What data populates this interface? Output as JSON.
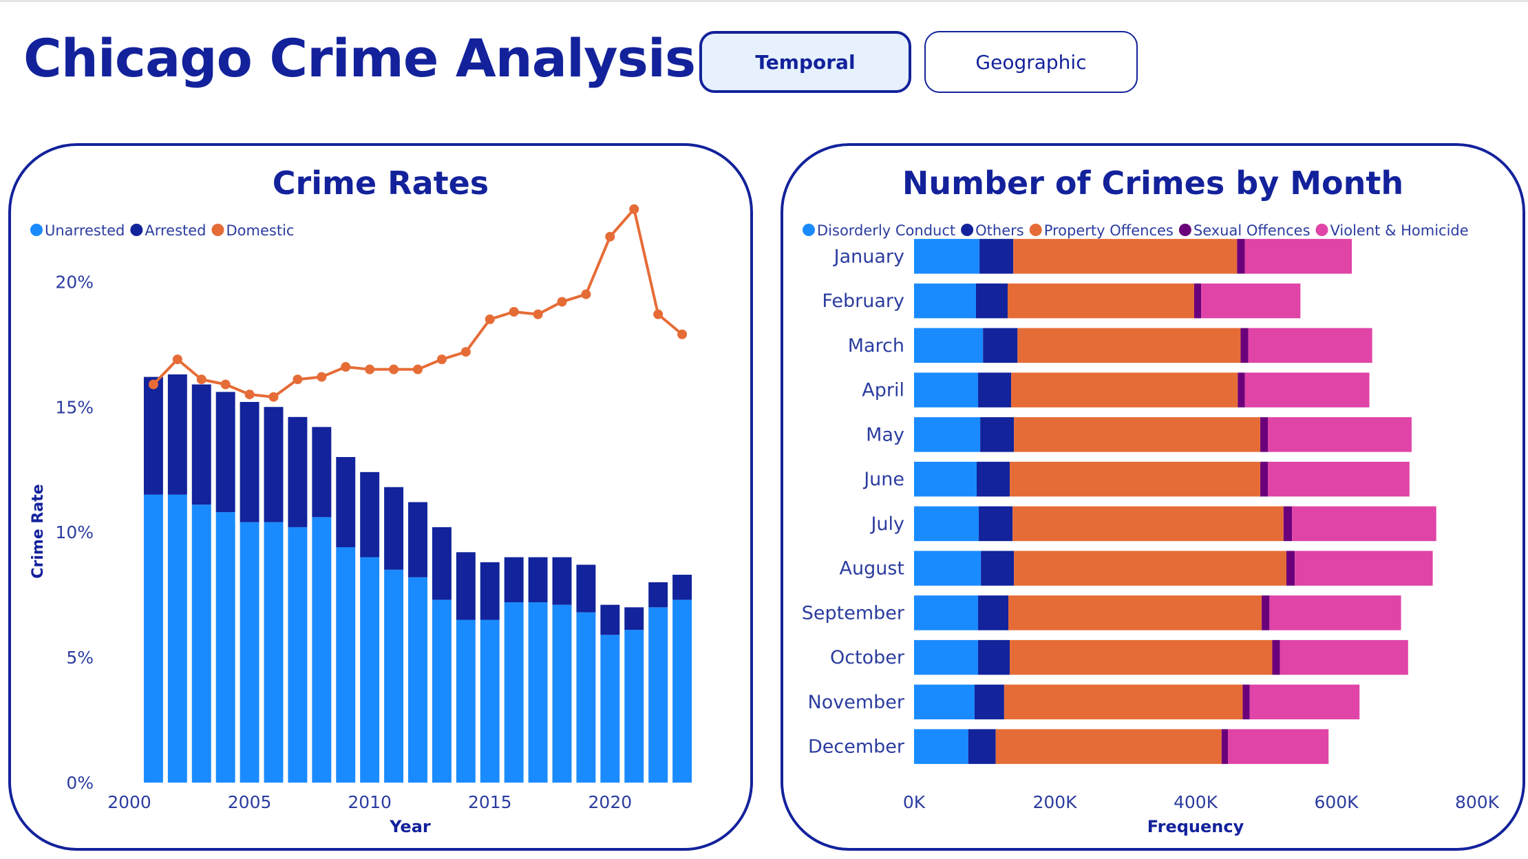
{
  "page": {
    "title": "Chicago Crime Analysis",
    "tabs": [
      {
        "label": "Temporal",
        "active": true
      },
      {
        "label": "Geographic",
        "active": false
      }
    ]
  },
  "colors": {
    "brand": "#13229b",
    "unarrested": "#1a8bff",
    "arrested": "#12239b",
    "domestic": "#e66c37",
    "disorderly": "#1a8bff",
    "others": "#12239b",
    "property": "#e66c37",
    "sexual": "#6b007b",
    "violent": "#e044a7"
  },
  "chart_data": [
    {
      "type": "bar",
      "title": "Crime Rates",
      "xlabel": "Year",
      "ylabel": "Crime Rate",
      "stacked": true,
      "legend_position": "top-left",
      "x": [
        2001,
        2002,
        2003,
        2004,
        2005,
        2006,
        2007,
        2008,
        2009,
        2010,
        2011,
        2012,
        2013,
        2014,
        2015,
        2016,
        2017,
        2018,
        2019,
        2020,
        2021,
        2022,
        2023
      ],
      "series": [
        {
          "name": "Unarrested",
          "kind": "bar",
          "color": "#1a8bff",
          "values": [
            11.5,
            11.5,
            11.1,
            10.8,
            10.4,
            10.4,
            10.2,
            10.6,
            9.4,
            9.0,
            8.5,
            8.2,
            7.3,
            6.5,
            6.5,
            7.2,
            7.2,
            7.1,
            6.8,
            5.9,
            6.1,
            7.0,
            7.3
          ]
        },
        {
          "name": "Arrested",
          "kind": "bar",
          "color": "#12239b",
          "values": [
            4.7,
            4.8,
            4.8,
            4.8,
            4.8,
            4.6,
            4.4,
            3.6,
            3.6,
            3.4,
            3.3,
            3.0,
            2.9,
            2.7,
            2.3,
            1.8,
            1.8,
            1.9,
            1.9,
            1.2,
            0.9,
            1.0,
            1.0
          ]
        },
        {
          "name": "Domestic",
          "kind": "line",
          "color": "#e66c37",
          "values": [
            15.9,
            16.9,
            16.1,
            15.9,
            15.5,
            15.4,
            16.1,
            16.2,
            16.6,
            16.5,
            16.5,
            16.5,
            16.9,
            17.2,
            18.5,
            18.8,
            18.7,
            19.2,
            19.5,
            21.8,
            22.9,
            18.7,
            17.9
          ]
        }
      ],
      "xlim": [
        2000,
        2024
      ],
      "x_ticks": [
        2000,
        2005,
        2010,
        2015,
        2020
      ],
      "y_ticks": [
        0,
        5,
        10,
        15,
        20
      ],
      "y_tick_labels": [
        "0%",
        "5%",
        "10%",
        "15%",
        "20%"
      ],
      "ylim": [
        0,
        23.5
      ]
    },
    {
      "type": "bar",
      "orientation": "horizontal",
      "stacked": true,
      "title": "Number of Crimes by Month",
      "xlabel": "Frequency",
      "ylabel": "",
      "legend_position": "top-left",
      "categories": [
        "January",
        "February",
        "March",
        "April",
        "May",
        "June",
        "July",
        "August",
        "September",
        "October",
        "November",
        "December"
      ],
      "series": [
        {
          "name": "Disorderly Conduct",
          "color": "#1a8bff",
          "values": [
            93000,
            88000,
            98000,
            91000,
            94000,
            89000,
            92000,
            95000,
            91000,
            91000,
            86000,
            77000
          ]
        },
        {
          "name": "Others",
          "color": "#12239b",
          "values": [
            48000,
            45000,
            49000,
            47000,
            48000,
            47000,
            48000,
            47000,
            43000,
            45000,
            42000,
            39000
          ]
        },
        {
          "name": "Property Offences",
          "color": "#e66c37",
          "values": [
            318000,
            265000,
            317000,
            322000,
            350000,
            356000,
            385000,
            387000,
            360000,
            373000,
            339000,
            321000
          ]
        },
        {
          "name": "Sexual Offences",
          "color": "#6b007b",
          "values": [
            11000,
            10000,
            11000,
            10000,
            11000,
            11000,
            12000,
            12000,
            11000,
            11000,
            10000,
            9000
          ]
        },
        {
          "name": "Violent & Homicide",
          "color": "#e044a7",
          "values": [
            152000,
            141000,
            176000,
            177000,
            204000,
            201000,
            205000,
            196000,
            187000,
            182000,
            156000,
            143000
          ]
        }
      ],
      "xlim": [
        0,
        800000
      ],
      "x_ticks": [
        0,
        200000,
        400000,
        600000,
        800000
      ],
      "x_tick_labels": [
        "0K",
        "200K",
        "400K",
        "600K",
        "800K"
      ]
    }
  ]
}
